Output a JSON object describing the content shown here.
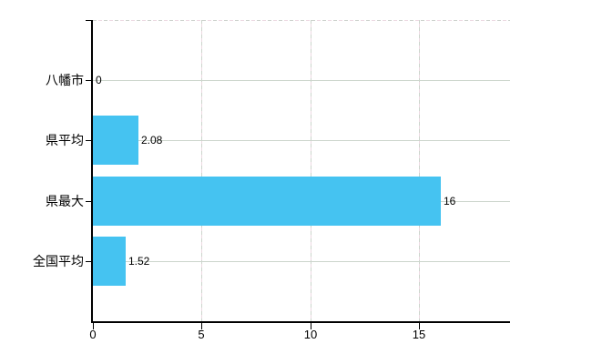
{
  "chart_data": {
    "type": "bar",
    "orientation": "horizontal",
    "title": "",
    "categories": [
      "八幡市",
      "県平均",
      "県最大",
      "全国平均"
    ],
    "values": [
      0,
      2.08,
      16,
      1.52
    ],
    "value_labels": [
      "0",
      "2.08",
      "16",
      "1.52"
    ],
    "x_ticks": [
      0,
      5,
      10,
      15
    ],
    "x_tick_labels": [
      "0",
      "5",
      "10",
      "15"
    ],
    "xlim": [
      0,
      19.2
    ],
    "grid": true,
    "legend": "none",
    "colors": {
      "bar": "#45C3F1",
      "axis": "#000000",
      "text": "#000000",
      "hgrid": "#ccd5cc",
      "vgrid_dash_a": "#ccd5cc",
      "vgrid_dash_b": "#ecd9e2",
      "top_border_dash": "#cdd2cd",
      "background": "#ffffff"
    }
  }
}
